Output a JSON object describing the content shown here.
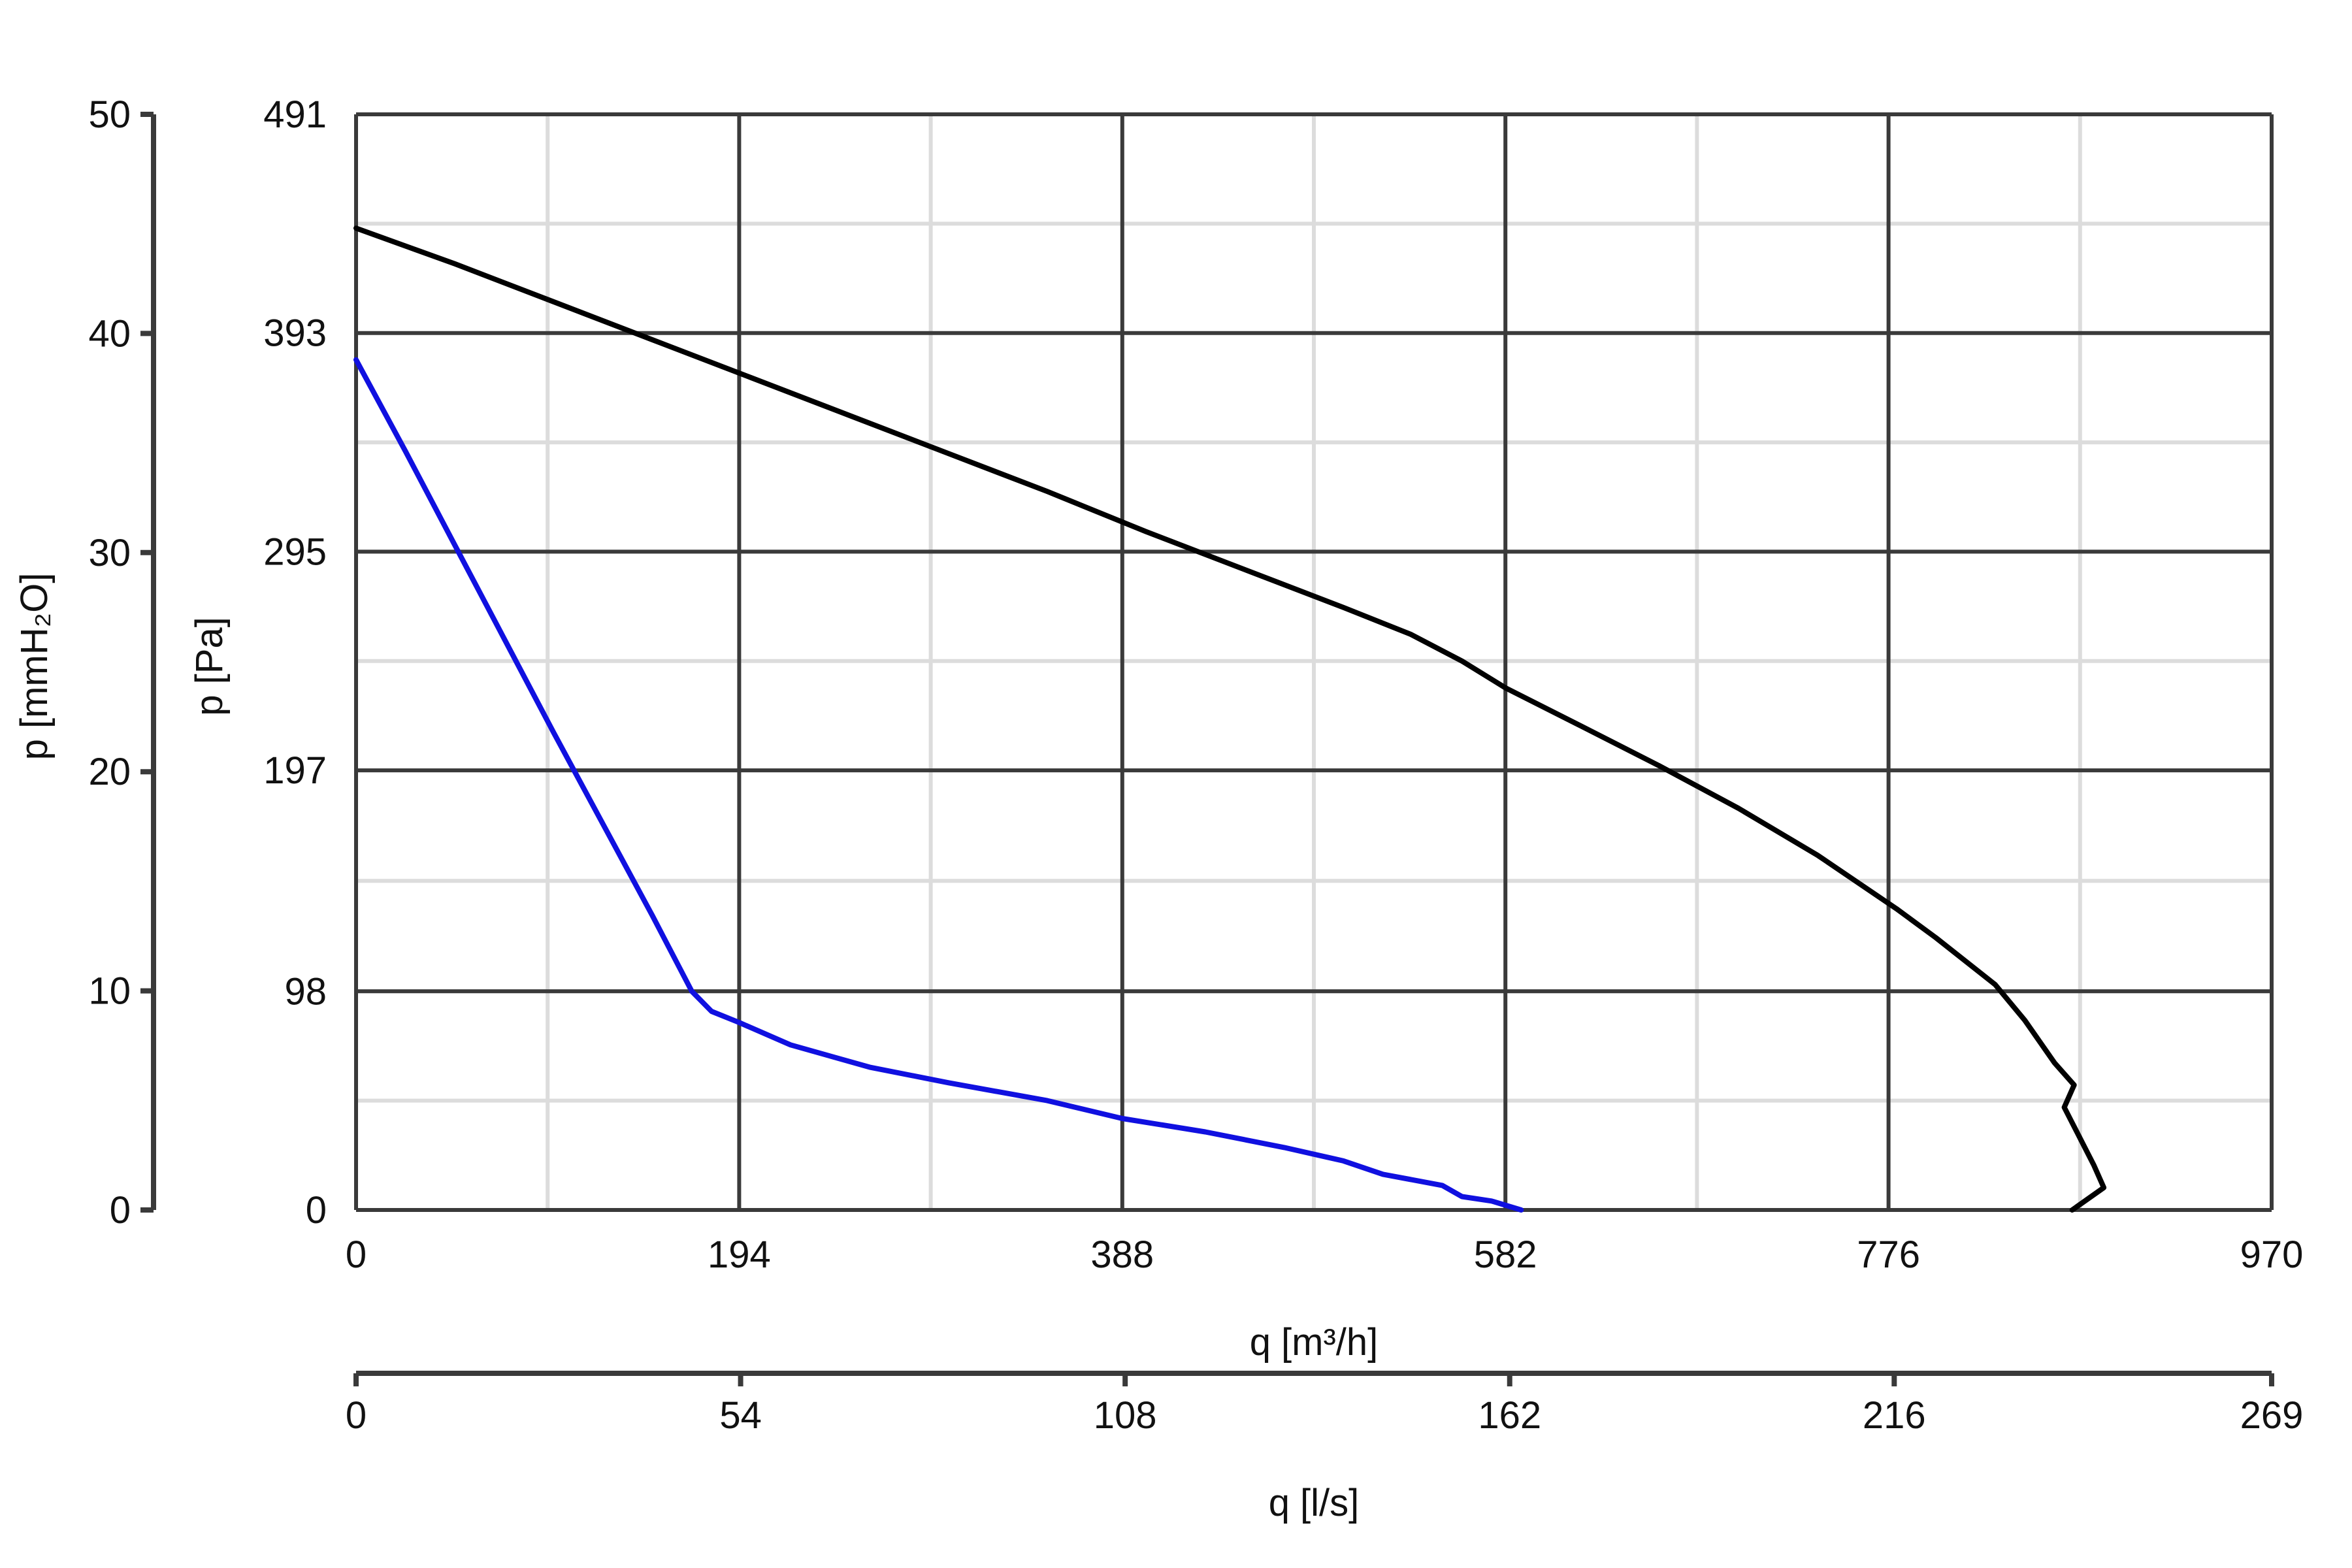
{
  "chart_data": {
    "type": "line",
    "x_axis_primary": {
      "label": "q [m³/h]",
      "ticks": [
        0,
        194,
        388,
        582,
        776,
        970
      ],
      "range": [
        0,
        970
      ]
    },
    "x_axis_secondary": {
      "label": "q [l/s]",
      "ticks": [
        0,
        54,
        108,
        162,
        216,
        269
      ],
      "range": [
        0,
        269
      ]
    },
    "y_axis_primary": {
      "label": "p [Pa]",
      "ticks": [
        0,
        98,
        197,
        295,
        393,
        491
      ],
      "range": [
        0,
        491
      ]
    },
    "y_axis_secondary": {
      "label": "p [mmH₂O]",
      "ticks": [
        0,
        10,
        20,
        30,
        40,
        50
      ],
      "range": [
        0,
        50
      ]
    },
    "grid": true,
    "legend": "none",
    "series": [
      {
        "color": "#000000",
        "points": [
          [
            0,
            440
          ],
          [
            50,
            424
          ],
          [
            100,
            407
          ],
          [
            150,
            390
          ],
          [
            200,
            373
          ],
          [
            250,
            356
          ],
          [
            300,
            339
          ],
          [
            350,
            322
          ],
          [
            400,
            304
          ],
          [
            450,
            287
          ],
          [
            500,
            270
          ],
          [
            534,
            258
          ],
          [
            560,
            246
          ],
          [
            582,
            234
          ],
          [
            620,
            217
          ],
          [
            660,
            199
          ],
          [
            700,
            180
          ],
          [
            740,
            159
          ],
          [
            780,
            135
          ],
          [
            800,
            122
          ],
          [
            830,
            101
          ],
          [
            845,
            85
          ],
          [
            860,
            66
          ],
          [
            870,
            56
          ],
          [
            865,
            46
          ],
          [
            880,
            20
          ],
          [
            885,
            10
          ],
          [
            869,
            0
          ]
        ]
      },
      {
        "color": "#1010e0",
        "points": [
          [
            0,
            381
          ],
          [
            25,
            340
          ],
          [
            50,
            298
          ],
          [
            75,
            256
          ],
          [
            100,
            214
          ],
          [
            125,
            173
          ],
          [
            150,
            132
          ],
          [
            170,
            98
          ],
          [
            180,
            89
          ],
          [
            194,
            84
          ],
          [
            220,
            74
          ],
          [
            260,
            64
          ],
          [
            300,
            57
          ],
          [
            350,
            49
          ],
          [
            388,
            41
          ],
          [
            430,
            35
          ],
          [
            470,
            28
          ],
          [
            500,
            22
          ],
          [
            520,
            16
          ],
          [
            550,
            11
          ],
          [
            560,
            6
          ],
          [
            575,
            4
          ],
          [
            590,
            0
          ]
        ]
      }
    ]
  }
}
